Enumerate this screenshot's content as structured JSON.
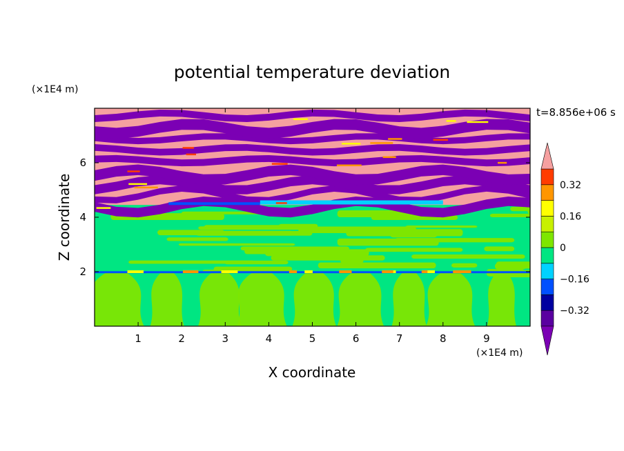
{
  "chart_data": {
    "type": "heatmap",
    "title": "potential temperature deviation",
    "xlabel": "X coordinate",
    "ylabel": "Z coordinate",
    "x_unit": "(×1E4 m)",
    "y_unit": "(×1E4 m)",
    "time_label": "t=8.856e+06 s",
    "xlim": [
      0,
      10
    ],
    "ylim": [
      0,
      8
    ],
    "x_ticks": [
      1,
      2,
      3,
      4,
      5,
      6,
      7,
      8,
      9
    ],
    "y_ticks": [
      2,
      4,
      6
    ],
    "colorbar": {
      "levels": [
        -0.4,
        -0.32,
        -0.24,
        -0.16,
        -0.08,
        0,
        0.08,
        0.16,
        0.24,
        0.32,
        0.4
      ],
      "tick_labels": [
        "0.32",
        "0.16",
        "0",
        "−0.16",
        "−0.32"
      ],
      "tick_values": [
        0.32,
        0.16,
        0,
        -0.16,
        -0.32
      ],
      "colors": {
        "below_min": "#7b00b4",
        "-0.40_-0.32": "#5a00a0",
        "-0.32_-0.24": "#0000a0",
        "-0.24_-0.16": "#0050ff",
        "-0.16_-0.08": "#00d2ff",
        "-0.08_0": "#00e682",
        "0_0.08": "#7ee600",
        "0.08_0.16": "#c8f000",
        "0.16_0.24": "#ffff00",
        "0.24_0.32": "#ff9600",
        "0.32_0.40": "#ff3c00",
        "above_max": "#f5a0a0"
      }
    },
    "regions": [
      {
        "z_range": [
          0,
          2
        ],
        "dominant": "-0.08_0",
        "mixed_with": "0_0.08",
        "pattern": "convective plumes"
      },
      {
        "z_range": [
          2,
          4.5
        ],
        "dominant": "-0.08_0",
        "mixed_with": "0_0.08",
        "pattern": "horizontal layers"
      },
      {
        "z_range": [
          4.5,
          8
        ],
        "dominant": "above_max",
        "mixed_with": "below_min",
        "pattern": "alternating horizontal bands"
      }
    ]
  }
}
